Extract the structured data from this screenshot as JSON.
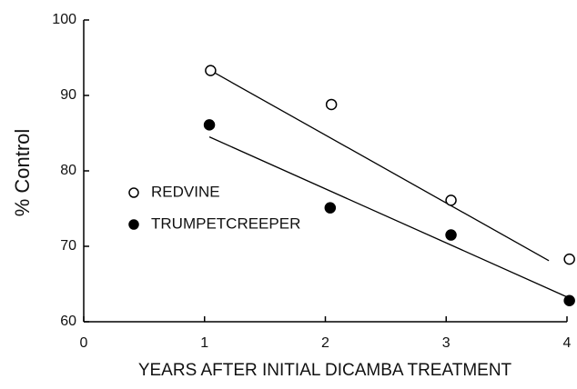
{
  "chart_data": {
    "type": "scatter",
    "xlabel": "YEARS AFTER INITIAL DICAMBA TREATMENT",
    "ylabel": "% Control",
    "xlim": [
      0,
      4
    ],
    "xticks": [
      0,
      1,
      2,
      3,
      4
    ],
    "ylim": [
      60,
      100
    ],
    "yticks": [
      60,
      70,
      80,
      90,
      100
    ],
    "legend": "left",
    "series": [
      {
        "name": "REDVINE",
        "color": "#000000",
        "marker": "open",
        "x": [
          1.05,
          2.05,
          3.04,
          4.02
        ],
        "values": [
          93.3,
          88.8,
          76.1,
          68.3
        ],
        "trend_x": [
          1.05,
          3.85
        ],
        "trend_y": [
          93.3,
          68.1
        ]
      },
      {
        "name": "TRUMPETCREEPER",
        "color": "#000000",
        "marker": "filled",
        "x": [
          1.04,
          2.04,
          3.04,
          4.02
        ],
        "values": [
          86.1,
          75.1,
          71.5,
          62.8
        ],
        "trend_x": [
          1.04,
          4.04
        ],
        "trend_y": [
          84.5,
          63.0
        ]
      }
    ]
  }
}
